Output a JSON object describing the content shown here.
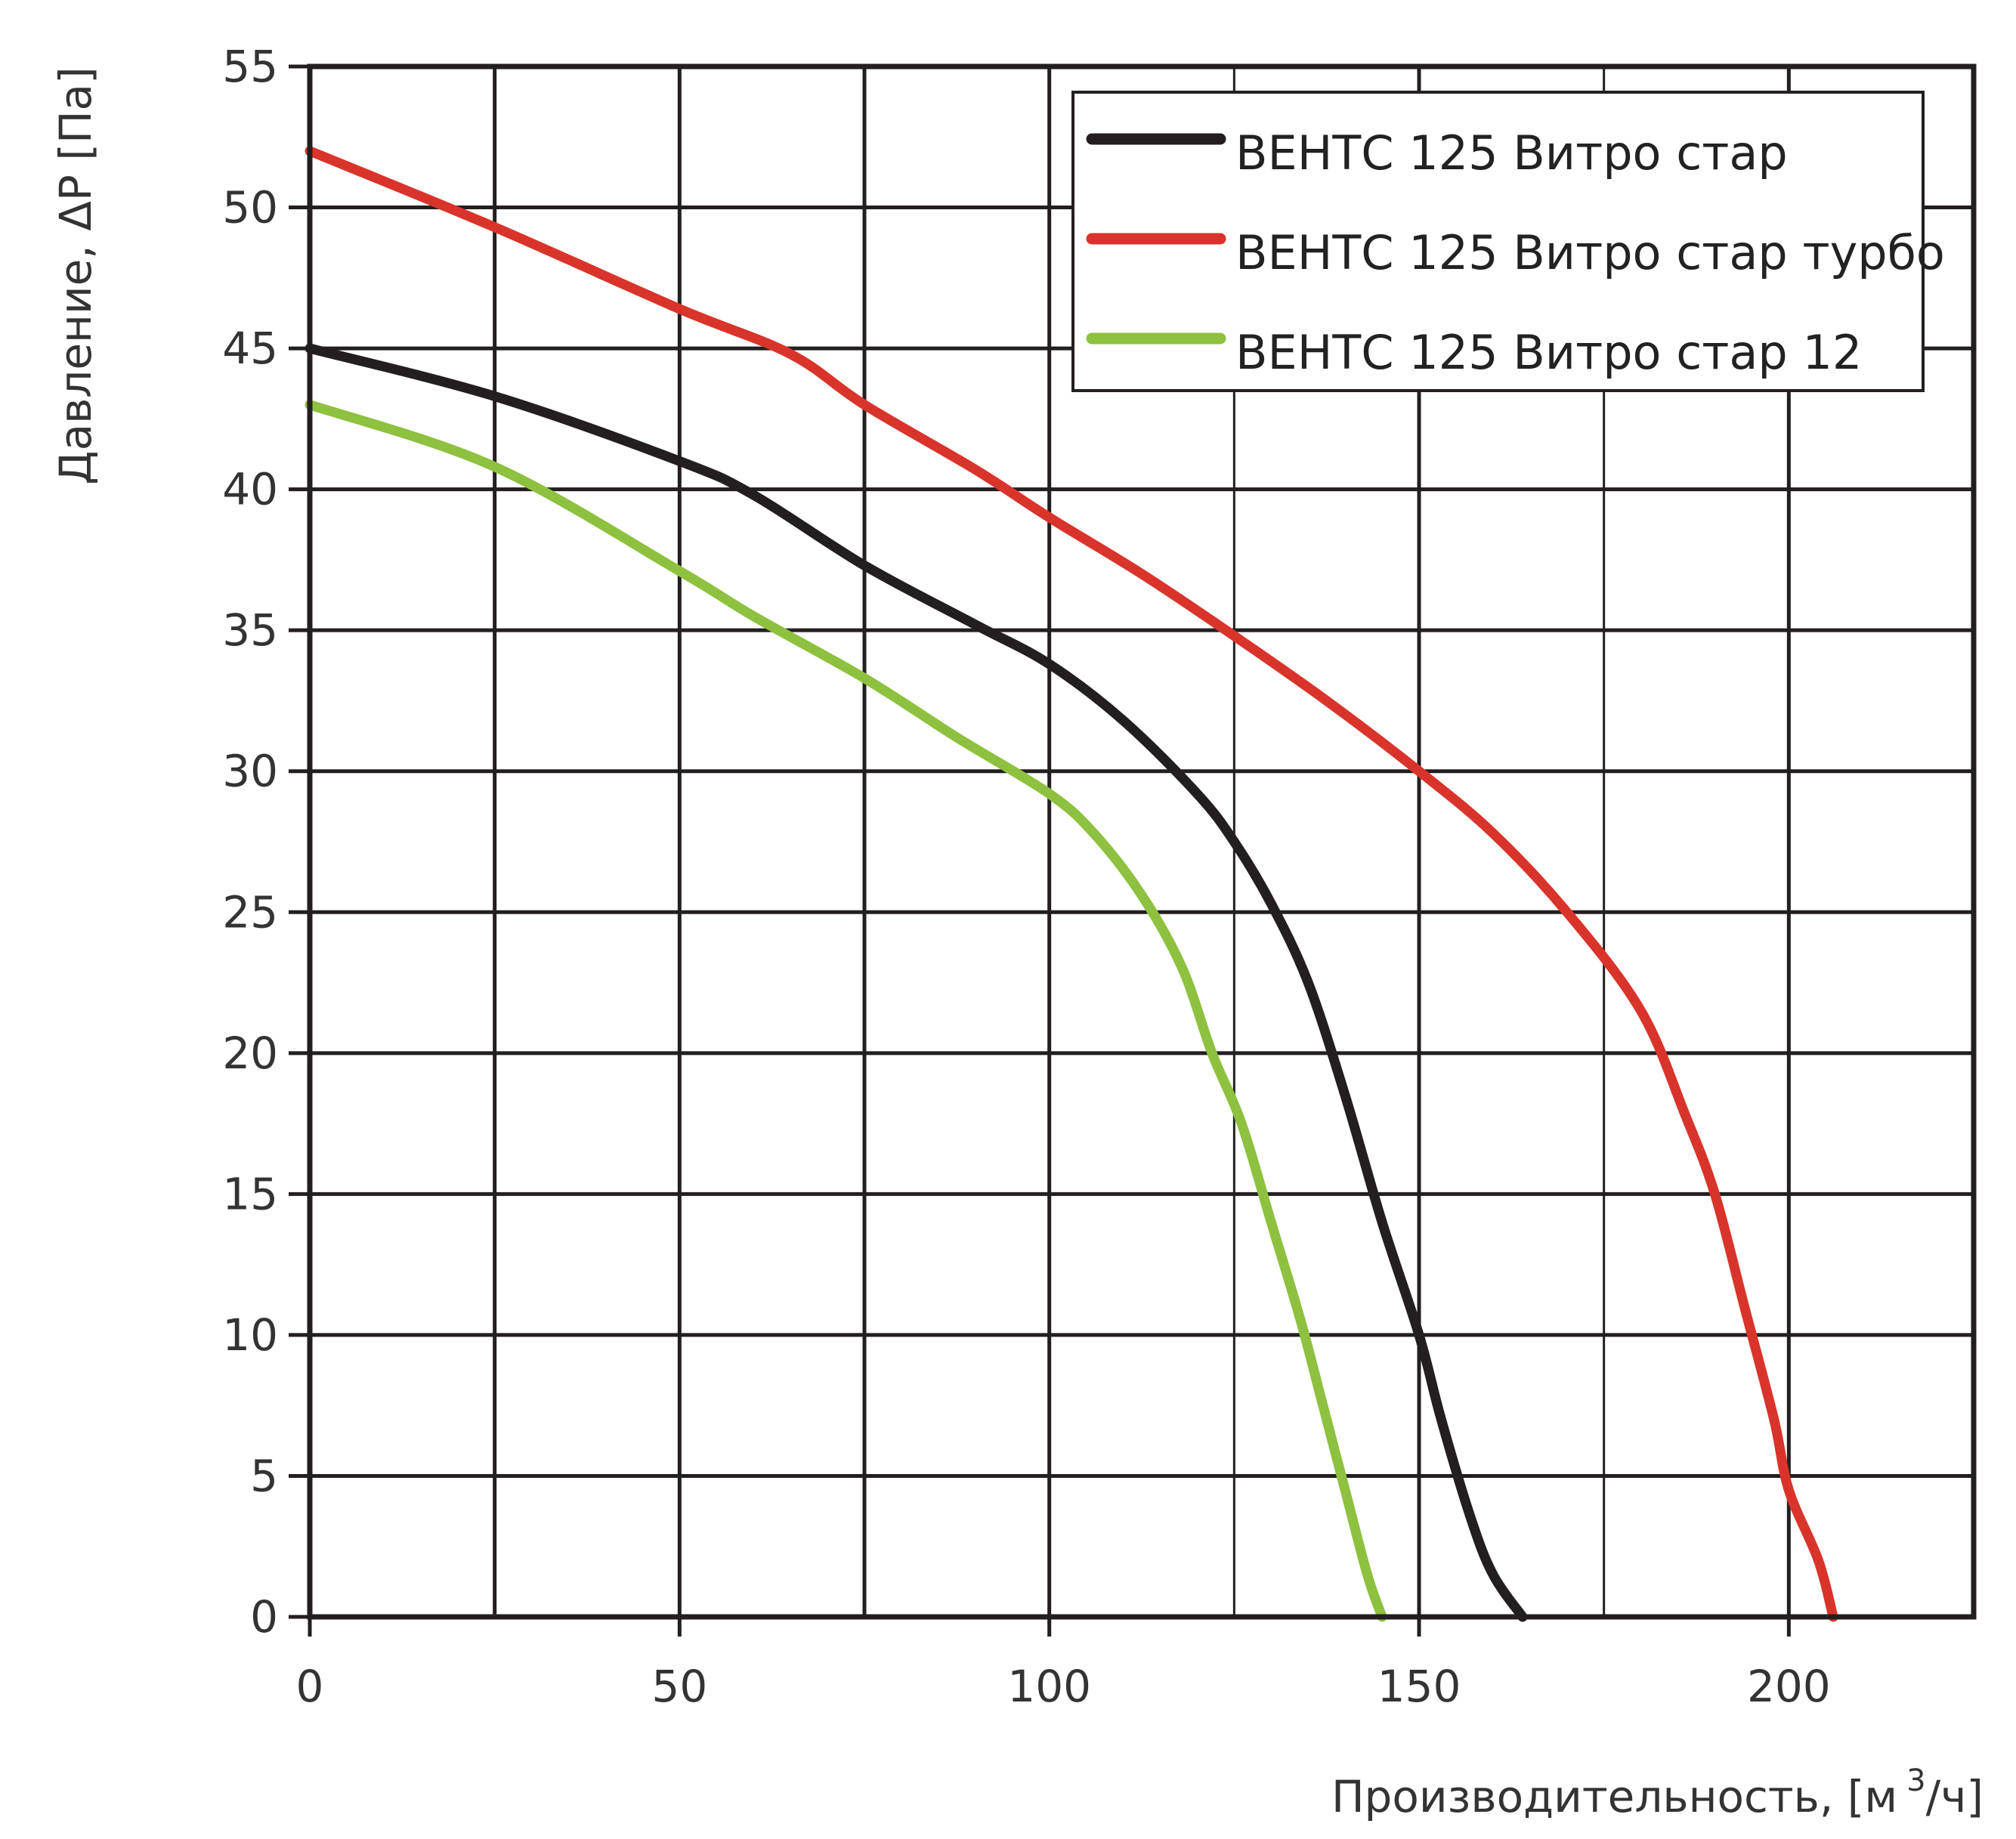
{
  "chart_data": {
    "type": "line",
    "title": "",
    "xlabel": "Производительность, [м",
    "xlabel_sup": "3",
    "xlabel_tail": "/ч]",
    "ylabel": "Давление, ΔP [Па]",
    "xlim": [
      0,
      225
    ],
    "ylim": [
      0,
      55
    ],
    "x_ticks": [
      0,
      50,
      100,
      150,
      200
    ],
    "x_tick_labels": [
      "0",
      "50",
      "100",
      "150",
      "200"
    ],
    "y_ticks": [
      0,
      5,
      10,
      15,
      20,
      25,
      30,
      35,
      40,
      45,
      50,
      55
    ],
    "y_tick_labels": [
      "0",
      "5",
      "10",
      "15",
      "20",
      "25",
      "30",
      "35",
      "40",
      "45",
      "50",
      "55"
    ],
    "x_grid": [
      25,
      50,
      75,
      100,
      125,
      150,
      175,
      200
    ],
    "y_grid": [
      5,
      10,
      15,
      20,
      25,
      30,
      35,
      40,
      45,
      50
    ],
    "grid": true,
    "legend_position": "top-right",
    "series": [
      {
        "name": "ВЕНТС 125 Витро стар",
        "color": "#231f20",
        "points": [
          [
            0,
            45
          ],
          [
            25,
            43.3
          ],
          [
            50,
            41
          ],
          [
            60,
            39.8
          ],
          [
            75,
            37.3
          ],
          [
            90,
            35.2
          ],
          [
            100,
            33.8
          ],
          [
            110,
            31.8
          ],
          [
            120,
            29.2
          ],
          [
            125,
            27.5
          ],
          [
            130,
            25.3
          ],
          [
            135,
            22.5
          ],
          [
            140,
            18.5
          ],
          [
            145,
            14
          ],
          [
            150,
            10
          ],
          [
            153,
            7
          ],
          [
            157,
            3.5
          ],
          [
            160,
            1.5
          ],
          [
            164,
            0
          ]
        ]
      },
      {
        "name": "ВЕНТС 125 Витро стар турбо",
        "color": "#d9342b",
        "points": [
          [
            0,
            52
          ],
          [
            25,
            49.3
          ],
          [
            50,
            46.4
          ],
          [
            65,
            44.8
          ],
          [
            75,
            43
          ],
          [
            90,
            40.7
          ],
          [
            100,
            39
          ],
          [
            112.5,
            37
          ],
          [
            125,
            34.8
          ],
          [
            137.5,
            32.5
          ],
          [
            150,
            30
          ],
          [
            160,
            27.8
          ],
          [
            170,
            25
          ],
          [
            180,
            21.5
          ],
          [
            186,
            17.8
          ],
          [
            190,
            15
          ],
          [
            194,
            11
          ],
          [
            198,
            7
          ],
          [
            200,
            4.5
          ],
          [
            204,
            2
          ],
          [
            206,
            0
          ]
        ]
      },
      {
        "name": "ВЕНТС 125 Витро стар 12",
        "color": "#8dc13f",
        "points": [
          [
            0,
            43
          ],
          [
            25,
            40.8
          ],
          [
            50,
            37.1
          ],
          [
            60,
            35.5
          ],
          [
            75,
            33.3
          ],
          [
            87.5,
            31.2
          ],
          [
            100,
            29.2
          ],
          [
            106,
            27.8
          ],
          [
            112.5,
            25.6
          ],
          [
            118,
            23
          ],
          [
            122,
            20
          ],
          [
            126,
            17.5
          ],
          [
            130,
            14
          ],
          [
            134,
            10.5
          ],
          [
            137,
            7.5
          ],
          [
            140,
            4.5
          ],
          [
            143,
            1.5
          ],
          [
            145,
            0
          ]
        ]
      }
    ]
  }
}
